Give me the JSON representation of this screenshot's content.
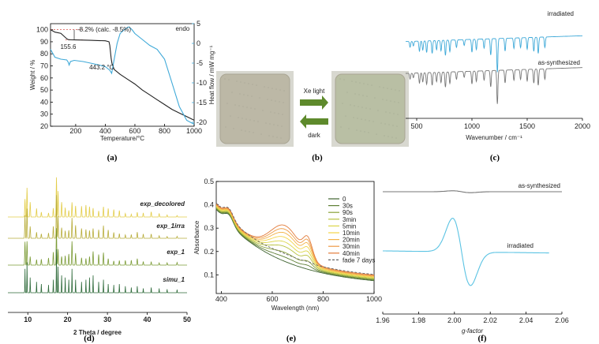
{
  "captions": [
    "(a)",
    "(b)",
    "(c)",
    "(d)",
    "(e)",
    "(f)"
  ],
  "chart_data": [
    {
      "panel": "a",
      "type": "line",
      "xlabel": "Temperature/°C",
      "ylabel": "Weight / %",
      "y2label": "Heat flow / mW mg⁻¹",
      "xlim": [
        30,
        1000
      ],
      "ylim": [
        20,
        105
      ],
      "y2lim": [
        -21,
        5
      ],
      "xticks": [
        200,
        400,
        600,
        800,
        1000
      ],
      "yticks": [
        20,
        30,
        40,
        50,
        60,
        70,
        80,
        90,
        100
      ],
      "y2ticks": [
        5,
        0,
        -5,
        -10,
        -15,
        -20
      ],
      "y2_tick_labels": [
        "5",
        "0",
        "-5",
        "-10",
        "-15",
        "-20"
      ],
      "series": [
        {
          "role": "weight",
          "color": "#222222",
          "x": [
            30,
            60,
            100,
            140,
            150,
            170,
            200,
            250,
            300,
            350,
            400,
            425,
            430,
            440,
            445,
            460,
            500,
            550,
            600,
            650,
            700,
            750,
            800,
            850,
            900,
            950,
            1000
          ],
          "y": [
            100,
            98,
            97,
            92.5,
            91.8,
            91.6,
            91.5,
            91.4,
            91.2,
            91,
            90.8,
            90,
            87,
            76,
            72,
            67,
            63,
            59,
            55,
            50,
            46,
            42,
            38,
            34,
            31,
            28,
            25
          ]
        },
        {
          "role": "heat flow",
          "color": "#3fa9d8",
          "x": [
            30,
            60,
            100,
            140,
            150,
            155.6,
            165,
            190,
            250,
            300,
            350,
            400,
            430,
            443.2,
            460,
            480,
            500,
            520,
            540,
            560,
            580,
            600,
            650,
            700,
            750,
            800,
            850,
            900,
            950,
            1000
          ],
          "y": [
            -1.5,
            -3.5,
            -4,
            -4.2,
            -4.8,
            -5.5,
            -4.6,
            -4.3,
            -4.6,
            -5,
            -5.4,
            -5.9,
            -6.8,
            -7.6,
            -4,
            0,
            2.5,
            3.2,
            3.8,
            4.2,
            3.5,
            2.5,
            1,
            -0.5,
            -1.5,
            -4,
            -10,
            -16,
            -19.5,
            -20.5
          ]
        }
      ],
      "annotations": [
        {
          "text": "-8.2% (calc. -8.5%)",
          "x": 190,
          "y": 98.5
        },
        {
          "text": "155.6",
          "x": 150,
          "y": 84
        },
        {
          "text": "443.2 °C",
          "x": 375,
          "y": 67
        },
        {
          "text": "endo",
          "x": 980,
          "y": 4
        }
      ]
    },
    {
      "panel": "b",
      "type": "photo",
      "labels": {
        "forward": "Xe light",
        "back": "dark"
      },
      "colors": {
        "before": "#bcb8a6",
        "after": "#b9bfa4",
        "arrow": "#5e8a2c"
      }
    },
    {
      "panel": "c",
      "type": "line",
      "xlabel": "Wavenumber / cm⁻¹",
      "xlim": [
        400,
        2000
      ],
      "xticks": [
        500,
        1000,
        1500,
        2000
      ],
      "series": [
        {
          "name": "irradiated",
          "color": "#3fa9d8",
          "offset": 0.55
        },
        {
          "name": "as-synthesized",
          "color": "#777777",
          "offset": 0
        }
      ],
      "bands": [
        {
          "x": 440,
          "depth": 0.1
        },
        {
          "x": 470,
          "depth": 0.08
        },
        {
          "x": 525,
          "depth": 0.18
        },
        {
          "x": 555,
          "depth": 0.16
        },
        {
          "x": 590,
          "depth": 0.2
        },
        {
          "x": 640,
          "depth": 0.22
        },
        {
          "x": 680,
          "depth": 0.16
        },
        {
          "x": 720,
          "depth": 0.18
        },
        {
          "x": 760,
          "depth": 0.26
        },
        {
          "x": 800,
          "depth": 0.2
        },
        {
          "x": 860,
          "depth": 0.13
        },
        {
          "x": 930,
          "depth": 0.1
        },
        {
          "x": 1000,
          "depth": 0.22
        },
        {
          "x": 1040,
          "depth": 0.18
        },
        {
          "x": 1110,
          "depth": 0.16
        },
        {
          "x": 1170,
          "depth": 0.28
        },
        {
          "x": 1230,
          "depth": 0.58
        },
        {
          "x": 1300,
          "depth": 0.22
        },
        {
          "x": 1380,
          "depth": 0.18
        },
        {
          "x": 1440,
          "depth": 0.17
        },
        {
          "x": 1500,
          "depth": 0.2
        },
        {
          "x": 1560,
          "depth": 0.24
        },
        {
          "x": 1600,
          "depth": 0.28
        },
        {
          "x": 1660,
          "depth": 0.18
        }
      ]
    },
    {
      "panel": "d",
      "type": "line",
      "xlabel": "2 Theta / degree",
      "xlim": [
        5,
        50
      ],
      "xticks": [
        10,
        20,
        30,
        40,
        50
      ],
      "series": [
        {
          "name": "exp_decolored",
          "color": "#e3cd4a"
        },
        {
          "name": "exp_1irra",
          "color": "#b8ad3b"
        },
        {
          "name": "exp_1",
          "color": "#7b9b36"
        },
        {
          "name": "simu_1",
          "color": "#2e6a3a"
        }
      ],
      "peaks": [
        {
          "x": 9.3,
          "h": 0.55
        },
        {
          "x": 9.8,
          "h": 0.7
        },
        {
          "x": 10.6,
          "h": 0.35
        },
        {
          "x": 12.2,
          "h": 0.25
        },
        {
          "x": 13.4,
          "h": 0.2
        },
        {
          "x": 15.2,
          "h": 0.18
        },
        {
          "x": 16.4,
          "h": 0.3
        },
        {
          "x": 17.2,
          "h": 1.0
        },
        {
          "x": 17.6,
          "h": 0.6
        },
        {
          "x": 18.5,
          "h": 0.4
        },
        {
          "x": 19.4,
          "h": 0.35
        },
        {
          "x": 20.3,
          "h": 0.3
        },
        {
          "x": 21.1,
          "h": 0.55
        },
        {
          "x": 22.0,
          "h": 0.3
        },
        {
          "x": 23.5,
          "h": 0.25
        },
        {
          "x": 24.6,
          "h": 0.3
        },
        {
          "x": 25.5,
          "h": 0.35
        },
        {
          "x": 26.4,
          "h": 0.4
        },
        {
          "x": 27.8,
          "h": 0.25
        },
        {
          "x": 29.0,
          "h": 0.3
        },
        {
          "x": 30.2,
          "h": 0.2
        },
        {
          "x": 31.6,
          "h": 0.18
        },
        {
          "x": 33.0,
          "h": 0.2
        },
        {
          "x": 34.5,
          "h": 0.15
        },
        {
          "x": 36.0,
          "h": 0.12
        },
        {
          "x": 37.5,
          "h": 0.15
        },
        {
          "x": 39.0,
          "h": 0.1
        },
        {
          "x": 41.0,
          "h": 0.12
        },
        {
          "x": 43.0,
          "h": 0.1
        },
        {
          "x": 45.0,
          "h": 0.08
        },
        {
          "x": 47.5,
          "h": 0.07
        }
      ]
    },
    {
      "panel": "e",
      "type": "line",
      "xlabel": "Wavelength (nm)",
      "ylabel": "Absorbance",
      "xlim": [
        380,
        1000
      ],
      "ylim": [
        0.02,
        0.5
      ],
      "xticks": [
        400,
        600,
        800,
        1000
      ],
      "yticks": [
        0.1,
        0.2,
        0.3,
        0.4,
        0.5
      ],
      "legend": "right",
      "series": [
        {
          "name": "0",
          "color": "#3f6330",
          "gain": 0.0
        },
        {
          "name": "30s",
          "color": "#5f7f35",
          "gain": 0.12
        },
        {
          "name": "90s",
          "color": "#89a13a",
          "gain": 0.25
        },
        {
          "name": "3min",
          "color": "#b8c240",
          "gain": 0.42
        },
        {
          "name": "5min",
          "color": "#dcd64a",
          "gain": 0.55
        },
        {
          "name": "10min",
          "color": "#f2d44a",
          "gain": 0.68
        },
        {
          "name": "20min",
          "color": "#f3b348",
          "gain": 0.8
        },
        {
          "name": "30min",
          "color": "#ee9a45",
          "gain": 0.9
        },
        {
          "name": "40min",
          "color": "#e27b3a",
          "gain": 1.0
        },
        {
          "name": "fade 7 days",
          "color": "#666666",
          "gain": 0.05,
          "dash": true
        }
      ]
    },
    {
      "panel": "f",
      "type": "line",
      "xlabel": "g-factor",
      "xlim": [
        1.96,
        2.06
      ],
      "xticks": [
        1.96,
        1.98,
        2.0,
        2.02,
        2.04,
        2.06
      ],
      "xtick_labels": [
        "1.96",
        "1.98",
        "2.00",
        "2.02",
        "2.04",
        "2.06"
      ],
      "series": [
        {
          "name": "as-synthesized",
          "color": "#777777",
          "amp": 0.08
        },
        {
          "name": "irradiated",
          "color": "#5bc3e3",
          "amp": 1.0
        }
      ],
      "line": {
        "center": 2.004,
        "width": 0.005
      }
    }
  ]
}
